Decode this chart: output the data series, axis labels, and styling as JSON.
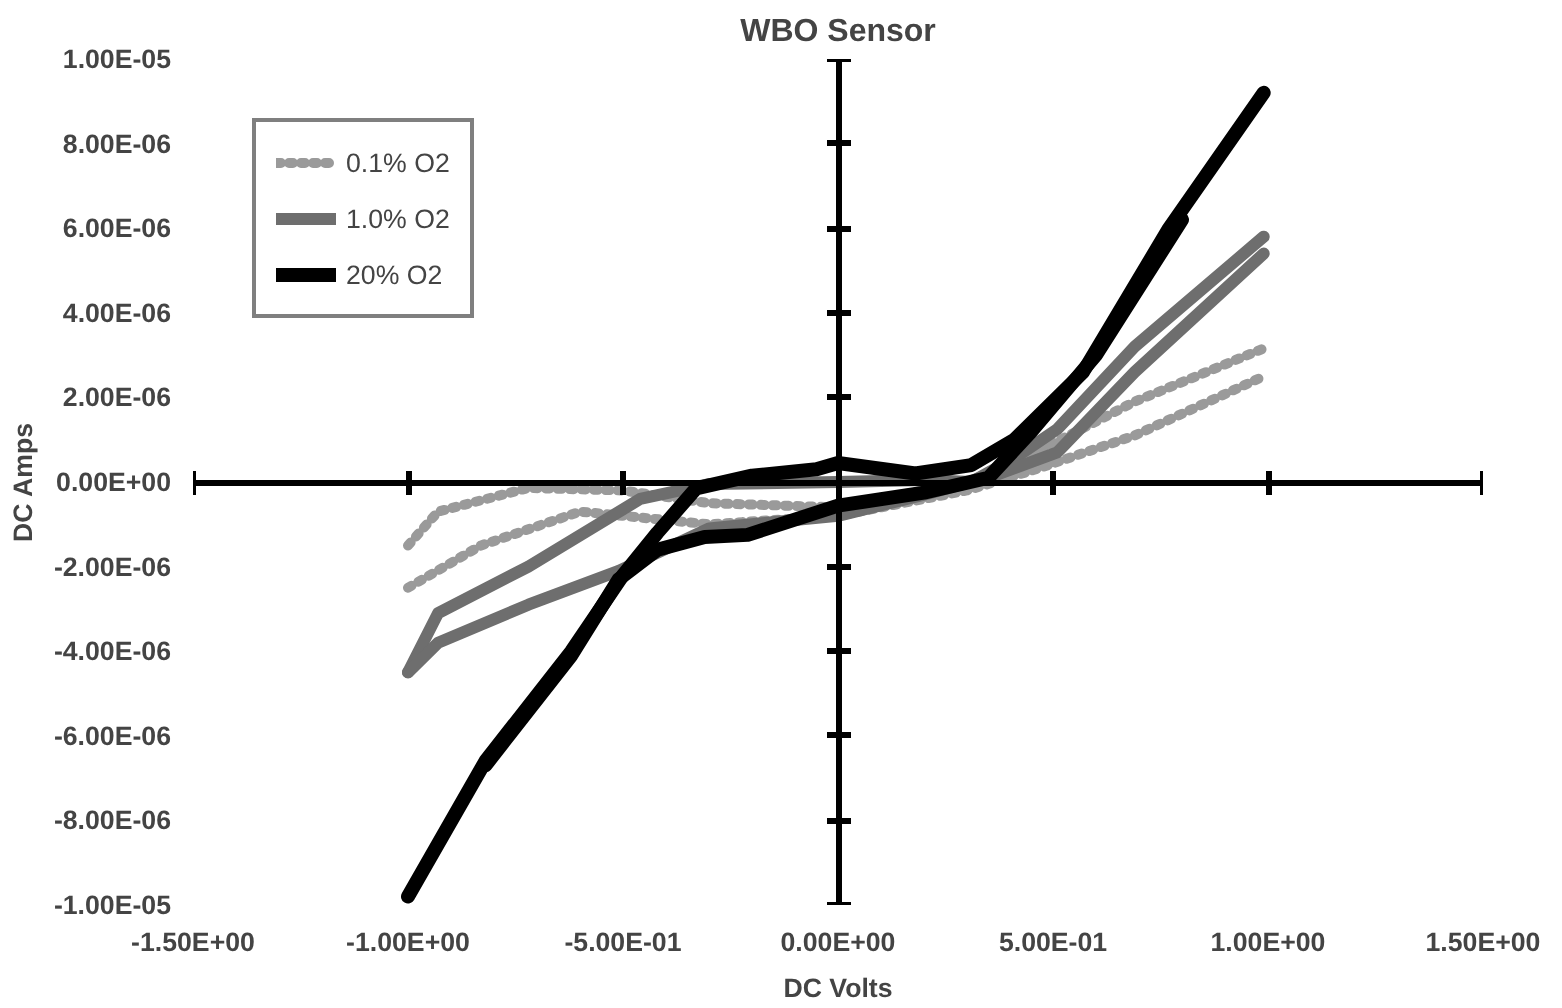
{
  "chart_data": {
    "type": "line",
    "title": "WBO Sensor",
    "xlabel": "DC Volts",
    "ylabel": "DC Amps",
    "xlim": [
      -1.5,
      1.5
    ],
    "ylim": [
      -1e-05,
      1e-05
    ],
    "xticks": [
      {
        "value": -1.5,
        "label": "-1.50E+00"
      },
      {
        "value": -1.0,
        "label": "-1.00E+00"
      },
      {
        "value": -0.5,
        "label": "-5.00E-01"
      },
      {
        "value": 0.0,
        "label": "0.00E+00"
      },
      {
        "value": 0.5,
        "label": "5.00E-01"
      },
      {
        "value": 1.0,
        "label": "1.00E+00"
      },
      {
        "value": 1.5,
        "label": "1.50E+00"
      }
    ],
    "yticks": [
      {
        "value": -1e-05,
        "label": "-1.00E-05"
      },
      {
        "value": -8e-06,
        "label": "-8.00E-06"
      },
      {
        "value": -6e-06,
        "label": "-6.00E-06"
      },
      {
        "value": -4e-06,
        "label": "-4.00E-06"
      },
      {
        "value": -2e-06,
        "label": "-2.00E-06"
      },
      {
        "value": 0.0,
        "label": "0.00E+00"
      },
      {
        "value": 2e-06,
        "label": "2.00E-06"
      },
      {
        "value": 4e-06,
        "label": "4.00E-06"
      },
      {
        "value": 6e-06,
        "label": "6.00E-06"
      },
      {
        "value": 8e-06,
        "label": "8.00E-06"
      },
      {
        "value": 1e-05,
        "label": "1.00E-05"
      }
    ],
    "legend": "top left",
    "marker": "none",
    "series": [
      {
        "name": "0.1% O2",
        "color": "#9a9a9a",
        "line_style": "dotted",
        "x": [
          -1.0,
          -0.93,
          -0.72,
          -0.5,
          -0.3,
          0.0,
          0.3,
          0.46,
          0.69,
          1.0
        ],
        "values": [
          -1.5e-06,
          -7e-07,
          -1.4e-07,
          -2e-07,
          -5e-07,
          -6e-07,
          0.0,
          7e-07,
          1.9e-06,
          3.2e-06
        ]
      },
      {
        "color": "#9a9a9a",
        "line_style": "dotted",
        "x": [
          -1.0,
          -0.83,
          -0.6,
          -0.3,
          0.0,
          0.3,
          0.46,
          0.69,
          0.99
        ],
        "values": [
          -2.5e-06,
          -1.5e-06,
          -7e-07,
          -1e-06,
          -8e-07,
          -2e-07,
          3e-07,
          1.1e-06,
          2.5e-06
        ]
      },
      {
        "name": "1.0% O2",
        "color": "#6e6e6e",
        "line_style": "solid",
        "x": [
          -1.0,
          -0.93,
          -0.72,
          -0.46,
          -0.3,
          0.0,
          0.2,
          0.31,
          0.41,
          0.51,
          0.69,
          0.99
        ],
        "values": [
          -4.5e-06,
          -3.1e-06,
          -2e-06,
          -4e-07,
          -5e-08,
          0.0,
          5e-08,
          0.0,
          5.6e-07,
          1.25e-06,
          3.2e-06,
          5.8e-06
        ]
      },
      {
        "color": "#6e6e6e",
        "line_style": "solid",
        "x": [
          -1.0,
          -0.93,
          -0.72,
          -0.51,
          -0.3,
          0.0,
          0.2,
          0.36,
          0.51,
          0.69,
          0.99
        ],
        "values": [
          -4.5e-06,
          -3.8e-06,
          -2.9e-06,
          -2.1e-06,
          -1.1e-06,
          -8e-07,
          -3e-07,
          1.4e-07,
          7e-07,
          2.6e-06,
          5.4e-06
        ]
      },
      {
        "name": "20% O2",
        "color": "#000000",
        "line_style": "solid",
        "x": [
          -1.0,
          -0.82,
          -0.62,
          -0.5,
          -0.42,
          -0.33,
          -0.2,
          -0.05,
          0.0,
          0.18,
          0.31,
          0.41,
          0.57,
          0.77,
          0.99
        ],
        "values": [
          -9.8e-06,
          -6.6e-06,
          -4e-06,
          -2.2e-06,
          -1.2e-06,
          -1.5e-07,
          1.5e-07,
          3e-07,
          4.5e-07,
          2e-07,
          4e-07,
          1e-06,
          2.6e-06,
          6e-06,
          9.2e-06
        ]
      },
      {
        "color": "#000000",
        "line_style": "solid",
        "x": [
          -0.82,
          -0.62,
          -0.51,
          -0.42,
          -0.31,
          -0.21,
          0.0,
          0.2,
          0.35,
          0.45,
          0.6,
          0.8
        ],
        "values": [
          -6.7e-06,
          -4.1e-06,
          -2.3e-06,
          -1.6e-06,
          -1.3e-06,
          -1.25e-06,
          -5.6e-07,
          -2.5e-07,
          1e-07,
          1.2e-06,
          3e-06,
          6.2e-06
        ]
      }
    ]
  }
}
